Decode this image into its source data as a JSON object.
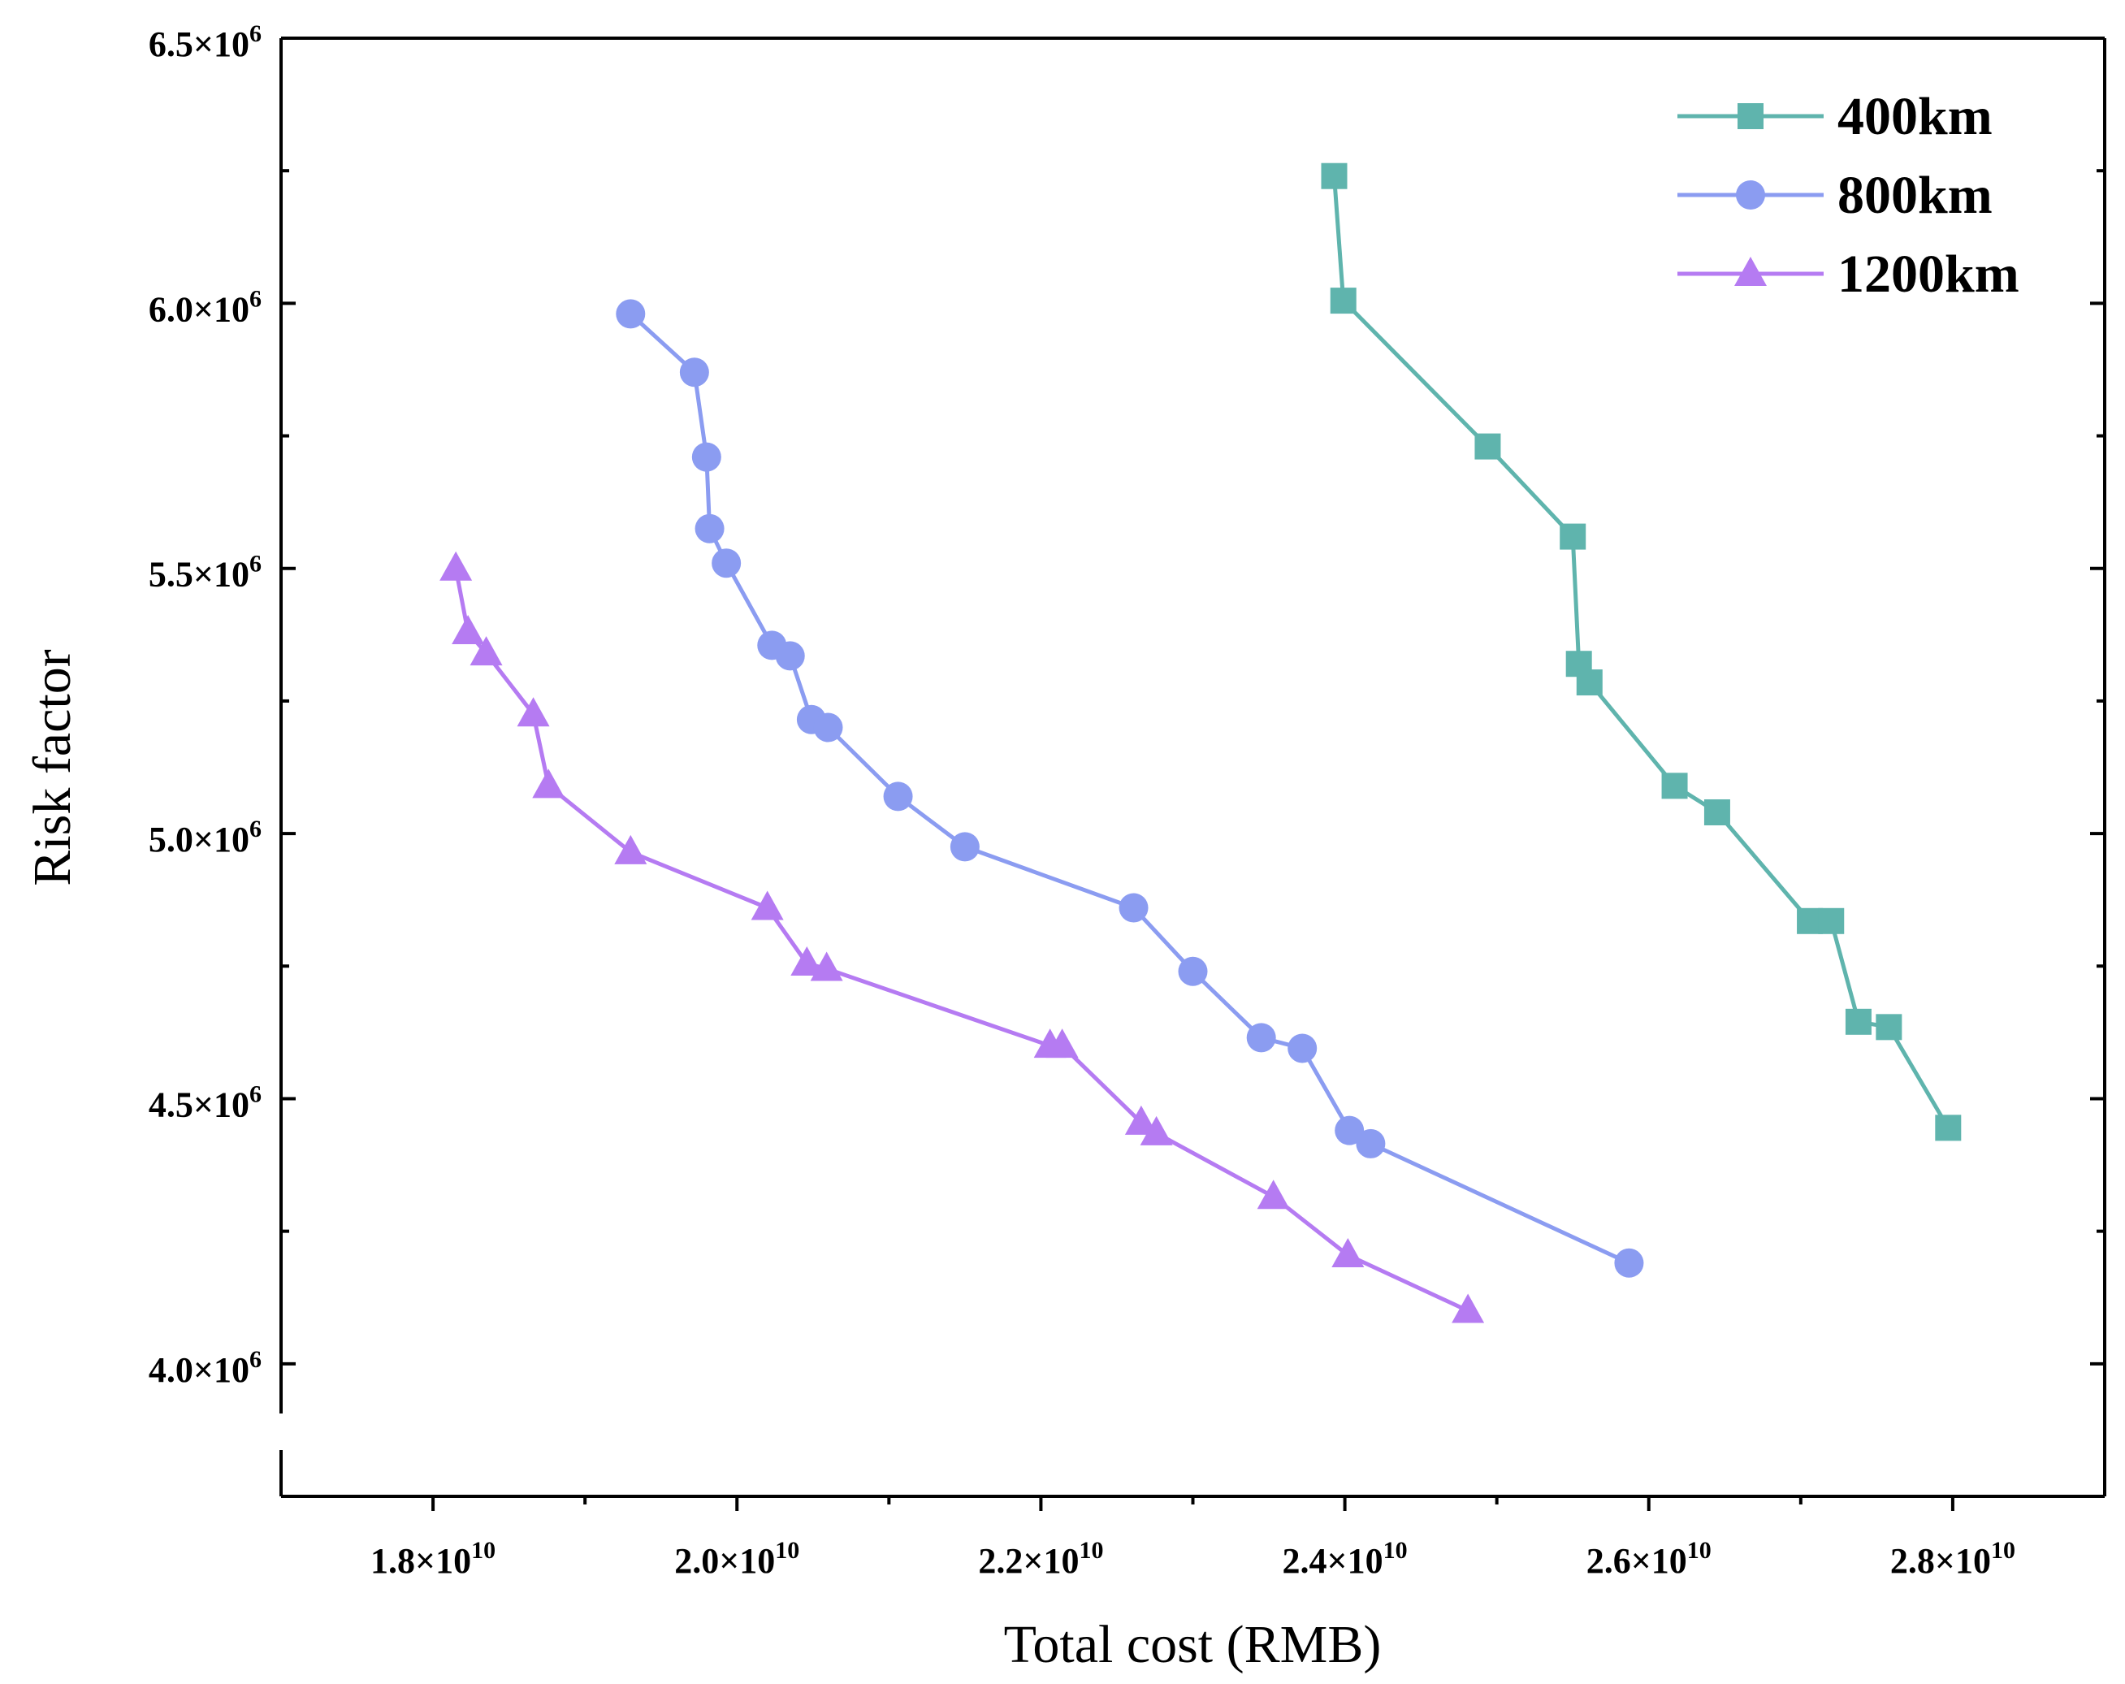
{
  "chart_data": {
    "type": "line",
    "title": "",
    "xlabel": "Total cost (RMB)",
    "ylabel": "Risk factor",
    "xlim": [
      17000000000.0,
      29000000000.0
    ],
    "ylim": [
      3750000.0,
      6500000.0
    ],
    "grid": false,
    "legend_position": "top-right",
    "x_ticks": [
      {
        "value": 18000000000.0,
        "mantissa": "1.8",
        "times": "×",
        "base": "10",
        "exp": "10"
      },
      {
        "value": 20000000000.0,
        "mantissa": "2.0",
        "times": "×",
        "base": "10",
        "exp": "10"
      },
      {
        "value": 22000000000.0,
        "mantissa": "2.2",
        "times": "×",
        "base": "10",
        "exp": "10"
      },
      {
        "value": 24000000000.0,
        "mantissa": "2.4",
        "times": "×",
        "base": "10",
        "exp": "10"
      },
      {
        "value": 26000000000.0,
        "mantissa": "2.6",
        "times": "×",
        "base": "10",
        "exp": "10"
      },
      {
        "value": 28000000000.0,
        "mantissa": "2.8",
        "times": "×",
        "base": "10",
        "exp": "10"
      }
    ],
    "x_minor_ticks": [
      19000000000.0,
      21000000000.0,
      23000000000.0,
      25000000000.0,
      27000000000.0
    ],
    "y_ticks": [
      {
        "value": 4000000.0,
        "mantissa": "4.0",
        "times": "×",
        "base": "10",
        "exp": "6"
      },
      {
        "value": 4500000.0,
        "mantissa": "4.5",
        "times": "×",
        "base": "10",
        "exp": "6"
      },
      {
        "value": 5000000.0,
        "mantissa": "5.0",
        "times": "×",
        "base": "10",
        "exp": "6"
      },
      {
        "value": 5500000.0,
        "mantissa": "5.5",
        "times": "×",
        "base": "10",
        "exp": "6"
      },
      {
        "value": 6000000.0,
        "mantissa": "6.0",
        "times": "×",
        "base": "10",
        "exp": "6"
      },
      {
        "value": 6500000.0,
        "mantissa": "6.5",
        "times": "×",
        "base": "10",
        "exp": "6"
      }
    ],
    "y_minor_ticks": [
      4250000.0,
      4750000.0,
      5250000.0,
      5750000.0,
      6250000.0
    ],
    "series": [
      {
        "name": "400km",
        "color": "#5fb4ad",
        "marker": "square",
        "x": [
          23930000000.0,
          23990000000.0,
          24940000000.0,
          25500000000.0,
          25540000000.0,
          25610000000.0,
          26170000000.0,
          26450000000.0,
          27060000000.0,
          27200000000.0,
          27380000000.0,
          27580000000.0,
          27970000000.0
        ],
        "y": [
          6240000.0,
          6005000.0,
          5730000.0,
          5560000.0,
          5320000.0,
          5285000.0,
          5090000.0,
          5040000.0,
          4835000.0,
          4835000.0,
          4645000.0,
          4635000.0,
          4445000.0
        ]
      },
      {
        "name": "800km",
        "color": "#8b9cf1",
        "marker": "circle",
        "x": [
          19300000000.0,
          19720000000.0,
          19800000000.0,
          19820000000.0,
          19930000000.0,
          20230000000.0,
          20350000000.0,
          20490000000.0,
          20600000000.0,
          21060000000.0,
          21500000000.0,
          22610000000.0,
          23000000000.0,
          23450000000.0,
          23720000000.0,
          24030000000.0,
          24170000000.0,
          25870000000.0
        ],
        "y": [
          5980000.0,
          5870000.0,
          5710000.0,
          5575000.0,
          5510000.0,
          5355000.0,
          5335000.0,
          5215000.0,
          5200000.0,
          5070000.0,
          4975000.0,
          4860000.0,
          4740000.0,
          4615000.0,
          4595000.0,
          4440000.0,
          4415000.0,
          4190000.0
        ]
      },
      {
        "name": "1200km",
        "color": "#b57bf2",
        "marker": "triangle",
        "x": [
          18150000000.0,
          18230000000.0,
          18350000000.0,
          18660000000.0,
          18760000000.0,
          19300000000.0,
          20200000000.0,
          20460000000.0,
          20590000000.0,
          22060000000.0,
          22140000000.0,
          22660000000.0,
          22760000000.0,
          23530000000.0,
          24020000000.0,
          24810000000.0
        ],
        "y": [
          5500000.0,
          5380000.0,
          5340000.0,
          5225000.0,
          5090000.0,
          4965000.0,
          4860000.0,
          4755000.0,
          4745000.0,
          4600000.0,
          4600000.0,
          4455000.0,
          4435000.0,
          4315000.0,
          4205000.0,
          4100000.0
        ]
      }
    ]
  }
}
